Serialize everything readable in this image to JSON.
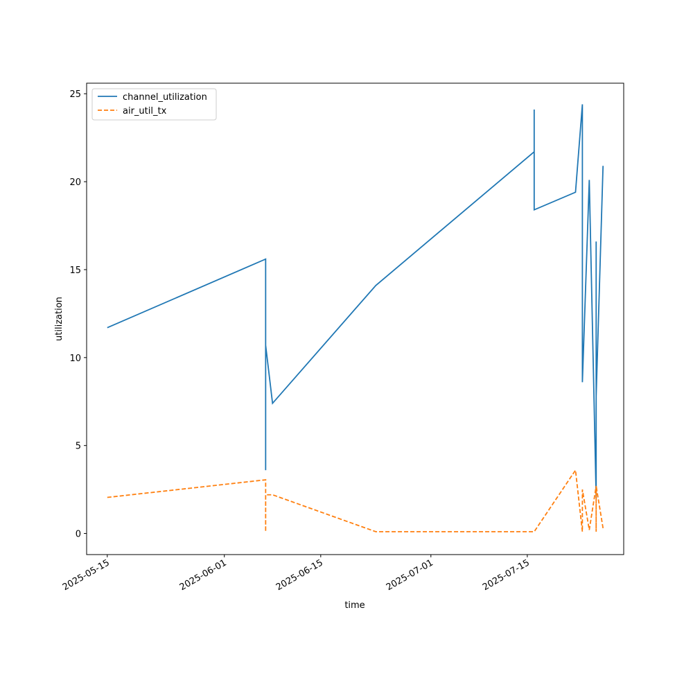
{
  "chart_data": {
    "type": "line",
    "x_label": "time",
    "y_label": "utilization",
    "x": [
      "2025-05-15",
      "2025-06-07",
      "2025-06-07",
      "2025-06-07",
      "2025-06-08",
      "2025-06-23",
      "2025-07-16",
      "2025-07-16",
      "2025-07-16",
      "2025-07-22",
      "2025-07-23",
      "2025-07-23",
      "2025-07-24",
      "2025-07-25",
      "2025-07-25",
      "2025-07-25",
      "2025-07-26"
    ],
    "series": [
      {
        "name": "channel_utilization",
        "color": "#1f77b4",
        "linestyle": "solid",
        "values": [
          11.7,
          15.6,
          3.6,
          10.7,
          7.4,
          14.1,
          21.7,
          24.1,
          18.4,
          19.4,
          24.4,
          8.6,
          20.1,
          2.0,
          16.6,
          7.8,
          20.9
        ]
      },
      {
        "name": "air_util_tx",
        "color": "#ff7f0e",
        "linestyle": "dashed",
        "values": [
          2.05,
          3.05,
          0.1,
          2.2,
          2.2,
          0.1,
          0.1,
          0.1,
          0.1,
          3.6,
          0.1,
          2.5,
          0.2,
          2.7,
          0.1,
          2.7,
          0.3
        ]
      }
    ],
    "xlim": [
      "2025-05-12",
      "2025-07-29"
    ],
    "xticks": [
      "2025-05-15",
      "2025-06-01",
      "2025-06-15",
      "2025-07-01",
      "2025-07-15"
    ],
    "ylim": [
      -1.2,
      25.6
    ],
    "yticks": [
      0,
      5,
      10,
      15,
      20,
      25
    ],
    "legend": "upper left"
  }
}
